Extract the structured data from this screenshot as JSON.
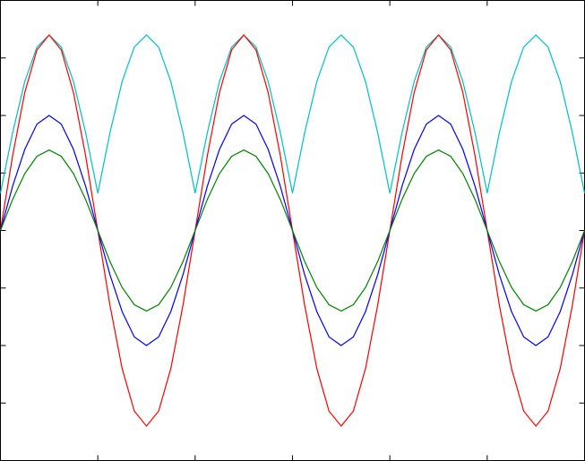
{
  "chart_data": {
    "type": "line",
    "x": [
      0,
      0.125,
      0.25,
      0.375,
      0.5,
      0.625,
      0.75,
      0.875,
      1,
      1.125,
      1.25,
      1.375,
      1.5,
      1.625,
      1.75,
      1.875,
      2,
      2.125,
      2.25,
      2.375,
      2.5,
      2.625,
      2.75,
      2.875,
      3,
      3.125,
      3.25,
      3.375,
      3.5,
      3.625,
      3.75,
      3.875,
      4,
      4.125,
      4.25,
      4.375,
      4.5,
      4.625,
      4.75,
      4.875,
      5,
      5.125,
      5.25,
      5.375,
      5.5,
      5.625,
      5.75,
      5.875,
      6
    ],
    "series": [
      {
        "color": "#00c0c0",
        "values": [
          0.65,
          1.7,
          2.59,
          3.19,
          3.4,
          3.19,
          2.59,
          1.7,
          0.65,
          1.7,
          2.59,
          3.19,
          3.4,
          3.19,
          2.59,
          1.7,
          0.65,
          1.7,
          2.59,
          3.19,
          3.4,
          3.19,
          2.59,
          1.7,
          0.65,
          1.7,
          2.59,
          3.19,
          3.4,
          3.19,
          2.59,
          1.7,
          0.65,
          1.7,
          2.59,
          3.19,
          3.4,
          3.19,
          2.59,
          1.7,
          0.65,
          1.7,
          2.59,
          3.19,
          3.4,
          3.19,
          2.59,
          1.7,
          0.65
        ]
      },
      {
        "color": "#ff0000",
        "values": [
          0,
          1.3,
          2.4,
          3.14,
          3.4,
          3.14,
          2.4,
          1.3,
          0,
          -1.3,
          -2.4,
          -3.14,
          -3.4,
          -3.14,
          -2.4,
          -1.3,
          0,
          1.3,
          2.4,
          3.14,
          3.4,
          3.14,
          2.4,
          1.3,
          0,
          -1.3,
          -2.4,
          -3.14,
          -3.4,
          -3.14,
          -2.4,
          -1.3,
          0,
          1.3,
          2.4,
          3.14,
          3.4,
          3.14,
          2.4,
          1.3,
          0,
          -1.3,
          -2.4,
          -3.14,
          -3.4,
          -3.14,
          -2.4,
          -1.3,
          0
        ]
      },
      {
        "color": "#0000ff",
        "values": [
          0,
          0.77,
          1.41,
          1.85,
          2,
          1.85,
          1.41,
          0.77,
          0,
          -0.77,
          -1.41,
          -1.85,
          -2,
          -1.85,
          -1.41,
          -0.77,
          0,
          0.77,
          1.41,
          1.85,
          2,
          1.85,
          1.41,
          0.77,
          0,
          -0.77,
          -1.41,
          -1.85,
          -2,
          -1.85,
          -1.41,
          -0.77,
          0,
          0.77,
          1.41,
          1.85,
          2,
          1.85,
          1.41,
          0.77,
          0,
          -0.77,
          -1.41,
          -1.85,
          -2,
          -1.85,
          -1.41,
          -0.77,
          0
        ]
      },
      {
        "color": "#008000",
        "values": [
          0,
          0.54,
          0.99,
          1.29,
          1.4,
          1.29,
          0.99,
          0.54,
          0,
          -0.54,
          -0.99,
          -1.29,
          -1.4,
          -1.29,
          -0.99,
          -0.54,
          0,
          0.54,
          0.99,
          1.29,
          1.4,
          1.29,
          0.99,
          0.54,
          0,
          -0.54,
          -0.99,
          -1.29,
          -1.4,
          -1.29,
          -0.99,
          -0.54,
          0,
          0.54,
          0.99,
          1.29,
          1.4,
          1.29,
          0.99,
          0.54,
          0,
          -0.54,
          -0.99,
          -1.29,
          -1.4,
          -1.29,
          -0.99,
          -0.54,
          0
        ]
      }
    ],
    "xlim": [
      0,
      6
    ],
    "ylim": [
      -4,
      4
    ],
    "xticks": [
      1,
      2,
      3,
      4,
      5
    ],
    "yticks": [
      -3,
      -2,
      -1,
      0,
      1,
      2,
      3
    ]
  }
}
